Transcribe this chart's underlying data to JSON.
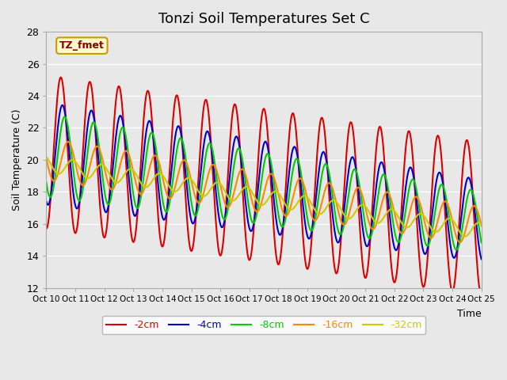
{
  "title": "Tonzi Soil Temperatures Set C",
  "xlabel": "Time",
  "ylabel": "Soil Temperature (C)",
  "ylim": [
    12,
    28
  ],
  "background_color": "#e8e8e8",
  "plot_bg_color": "#e8e8e8",
  "annotation_text": "TZ_fmet",
  "annotation_bg": "#ffffcc",
  "annotation_border": "#cc9900",
  "legend_labels": [
    "-2cm",
    "-4cm",
    "-8cm",
    "-16cm",
    "-32cm"
  ],
  "legend_colors": [
    "#dd0000",
    "#0000cc",
    "#00cc00",
    "#ff8800",
    "#cccc00"
  ],
  "line_width": 1.5,
  "tick_labels": [
    "Oct 10",
    "Oct 11",
    "Oct 12",
    "Oct 13",
    "Oct 14",
    "Oct 15",
    "Oct 16",
    "Oct 17",
    "Oct 18",
    "Oct 19",
    "Oct 20",
    "Oct 21",
    "Oct 22",
    "Oct 23",
    "Oct 24",
    "Oct 25"
  ],
  "n_days": 15
}
